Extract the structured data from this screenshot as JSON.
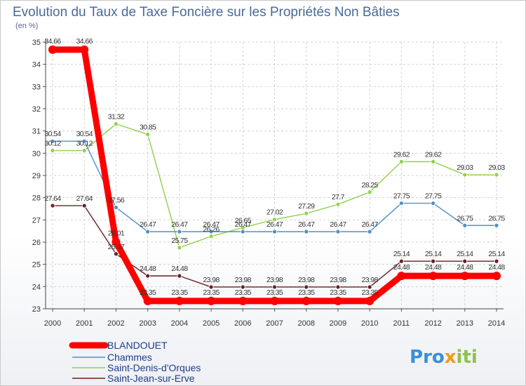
{
  "chart_data": {
    "type": "line",
    "title": "Evolution du Taux de Taxe Foncière sur les Propriétés Non Bâties",
    "unit_label": "(en %)",
    "xlabel": "",
    "ylabel": "",
    "x": [
      "2000",
      "2001",
      "2002",
      "2003",
      "2004",
      "2005",
      "2006",
      "2007",
      "2008",
      "2009",
      "2010",
      "2011",
      "2012",
      "2013",
      "2014"
    ],
    "ylim": [
      23,
      35
    ],
    "yticks": [
      "23",
      "24",
      "25",
      "26",
      "27",
      "28",
      "29",
      "30",
      "31",
      "32",
      "33",
      "34",
      "35"
    ],
    "grid": true,
    "legend_position": "bottom-left",
    "series": [
      {
        "name": "BLANDOUET",
        "color": "#ff0000",
        "values": [
          34.66,
          34.66,
          26.01,
          23.35,
          23.35,
          23.35,
          23.35,
          23.35,
          23.35,
          23.35,
          23.35,
          24.48,
          24.48,
          24.48,
          24.48
        ],
        "labels": [
          "34.66",
          "34.66",
          "26.01",
          "23.35",
          "23.35",
          "23.35",
          "23.35",
          "23.35",
          "23.35",
          "23.35",
          "23.35",
          "24.48",
          "24.48",
          "24.48",
          "24.48"
        ]
      },
      {
        "name": "Chammes",
        "color": "#4f8fcb",
        "values": [
          30.54,
          30.54,
          27.56,
          26.47,
          26.47,
          26.47,
          26.47,
          26.47,
          26.47,
          26.47,
          26.47,
          27.75,
          27.75,
          26.75,
          26.75
        ],
        "labels": [
          "30.54",
          "30.54",
          "27.56",
          "26.47",
          "26.47",
          "26.47",
          "26.47",
          "26.47",
          "26.47",
          "26.47",
          "26.47",
          "27.75",
          "27.75",
          "26.75",
          "26.75"
        ]
      },
      {
        "name": "Saint-Denis-d'Orques",
        "color": "#8fd24a",
        "values": [
          30.12,
          30.12,
          31.32,
          30.85,
          25.75,
          26.26,
          26.65,
          27.02,
          27.29,
          27.7,
          28.25,
          29.62,
          29.62,
          29.03,
          29.03
        ],
        "labels": [
          "30.12",
          "30.12",
          "31.32",
          "30.85",
          "25.75",
          "26.26",
          "26.65",
          "27.02",
          "27.29",
          "27.7",
          "28.25",
          "29.62",
          "29.62",
          "29.03",
          "29.03"
        ]
      },
      {
        "name": "Saint-Jean-sur-Erve",
        "color": "#6b1e22",
        "values": [
          27.64,
          27.64,
          25.47,
          24.48,
          24.48,
          23.98,
          23.98,
          23.98,
          23.98,
          23.98,
          23.98,
          25.14,
          25.14,
          25.14,
          25.14
        ],
        "labels": [
          "27.64",
          "27.64",
          "25.47",
          "24.48",
          "24.48",
          "23.98",
          "23.98",
          "23.98",
          "23.98",
          "23.98",
          "23.98",
          "25.14",
          "25.14",
          "25.14",
          "25.14"
        ]
      }
    ]
  },
  "logo": {
    "parts": [
      "Pro",
      "x",
      "iti"
    ],
    "colors": [
      "#3a8fd8",
      "#f39c12",
      "#8bc34a"
    ]
  }
}
